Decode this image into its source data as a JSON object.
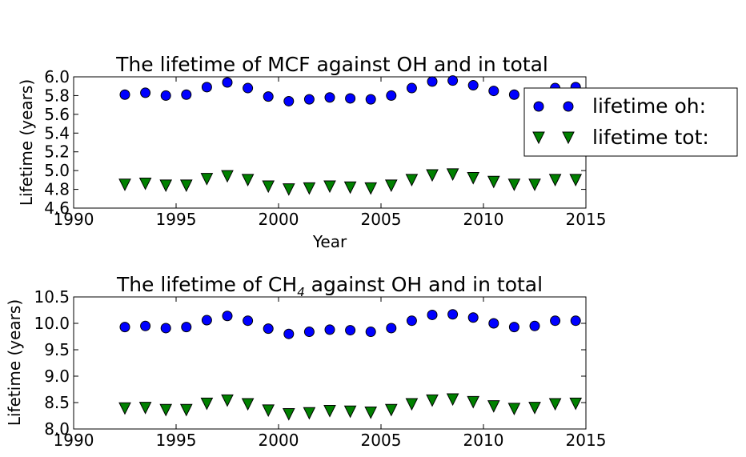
{
  "chart_data": [
    {
      "type": "scatter",
      "title": "The lifetime of MCF against OH and in total",
      "xlabel": "Year",
      "ylabel": "Lifetime (years)",
      "xlim": [
        1990,
        2015
      ],
      "ylim": [
        4.6,
        6.0
      ],
      "xticks": [
        "1990",
        "1995",
        "2000",
        "2005",
        "2010",
        "2015"
      ],
      "yticks": [
        "4.6",
        "4.8",
        "5.0",
        "5.2",
        "5.4",
        "5.6",
        "5.8",
        "6.0"
      ],
      "legend": {
        "placement": "right, outside axes"
      },
      "x": [
        1992.5,
        1993.5,
        1994.5,
        1995.5,
        1996.5,
        1997.5,
        1998.5,
        1999.5,
        2000.5,
        2001.5,
        2002.5,
        2003.5,
        2004.5,
        2005.5,
        2006.5,
        2007.5,
        2008.5,
        2009.5,
        2010.5,
        2011.5,
        2012.5,
        2013.5,
        2014.5
      ],
      "series": [
        {
          "name": "lifetime oh:",
          "marker": "circle",
          "color": "#0000ff",
          "values": [
            5.81,
            5.83,
            5.8,
            5.81,
            5.89,
            5.94,
            5.88,
            5.79,
            5.74,
            5.76,
            5.78,
            5.77,
            5.76,
            5.8,
            5.88,
            5.95,
            5.96,
            5.91,
            5.85,
            5.81,
            5.82,
            5.88,
            5.89
          ]
        },
        {
          "name": "lifetime tot:",
          "marker": "triangle-down",
          "color": "#008000",
          "values": [
            4.85,
            4.86,
            4.84,
            4.84,
            4.91,
            4.94,
            4.9,
            4.83,
            4.8,
            4.81,
            4.83,
            4.82,
            4.81,
            4.84,
            4.9,
            4.95,
            4.96,
            4.92,
            4.88,
            4.85,
            4.85,
            4.9,
            4.9
          ]
        }
      ]
    },
    {
      "type": "scatter",
      "title_prefix": "The lifetime of CH",
      "title_sub": "4",
      "title_suffix": " against OH and in total",
      "xlabel": "",
      "ylabel": "Lifetime (years)",
      "xlim": [
        1990,
        2015
      ],
      "ylim": [
        8.0,
        10.5
      ],
      "xticks": [
        "1990",
        "1995",
        "2000",
        "2005",
        "2010",
        "2015"
      ],
      "yticks": [
        "8.0",
        "8.5",
        "9.0",
        "9.5",
        "10.0",
        "10.5"
      ],
      "x": [
        1992.5,
        1993.5,
        1994.5,
        1995.5,
        1996.5,
        1997.5,
        1998.5,
        1999.5,
        2000.5,
        2001.5,
        2002.5,
        2003.5,
        2004.5,
        2005.5,
        2006.5,
        2007.5,
        2008.5,
        2009.5,
        2010.5,
        2011.5,
        2012.5,
        2013.5,
        2014.5
      ],
      "series": [
        {
          "marker": "circle",
          "color": "#0000ff",
          "values": [
            9.93,
            9.95,
            9.91,
            9.93,
            10.06,
            10.14,
            10.05,
            9.9,
            9.8,
            9.84,
            9.88,
            9.87,
            9.84,
            9.91,
            10.05,
            10.16,
            10.17,
            10.11,
            10.0,
            9.93,
            9.95,
            10.05,
            10.05
          ]
        },
        {
          "marker": "triangle-down",
          "color": "#008000",
          "values": [
            8.39,
            8.4,
            8.36,
            8.36,
            8.48,
            8.54,
            8.47,
            8.35,
            8.28,
            8.3,
            8.34,
            8.33,
            8.31,
            8.36,
            8.47,
            8.54,
            8.56,
            8.51,
            8.43,
            8.38,
            8.4,
            8.47,
            8.48
          ]
        }
      ]
    }
  ]
}
